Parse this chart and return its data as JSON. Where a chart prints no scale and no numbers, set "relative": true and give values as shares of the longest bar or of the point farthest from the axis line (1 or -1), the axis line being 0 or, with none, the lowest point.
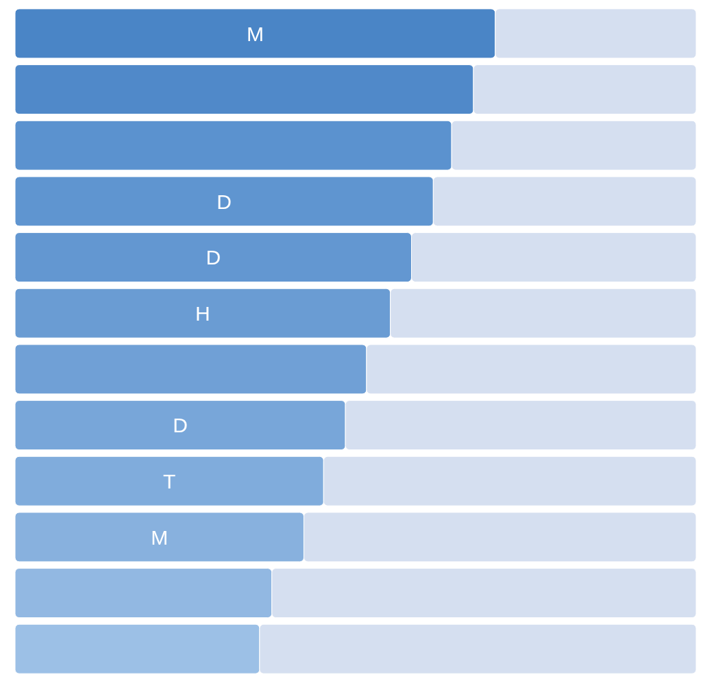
{
  "chart_data": {
    "type": "bar",
    "orientation": "horizontal",
    "stacked": true,
    "relative": true,
    "categories": [
      "M",
      null,
      null,
      "D",
      "D",
      "H",
      null,
      "D",
      "T",
      "M",
      null,
      null
    ],
    "series": [
      {
        "colors": [
          "#4a85c6",
          "#5089c9",
          "#5b92cf",
          "#5f95d0",
          "#6397d1",
          "#6a9cd3",
          "#70a0d6",
          "#78a6d9",
          "#80acdc",
          "#88b1de",
          "#92b8e2",
          "#9cc0e6"
        ],
        "color": "#6a9cd3",
        "values": [
          0.705,
          0.673,
          0.641,
          0.614,
          0.582,
          0.551,
          0.516,
          0.485,
          0.453,
          0.424,
          0.377,
          0.359
        ]
      },
      {
        "color": "#d5dff0",
        "values": [
          0.295,
          0.327,
          0.359,
          0.386,
          0.418,
          0.449,
          0.484,
          0.515,
          0.547,
          0.576,
          0.623,
          0.641
        ]
      }
    ]
  }
}
